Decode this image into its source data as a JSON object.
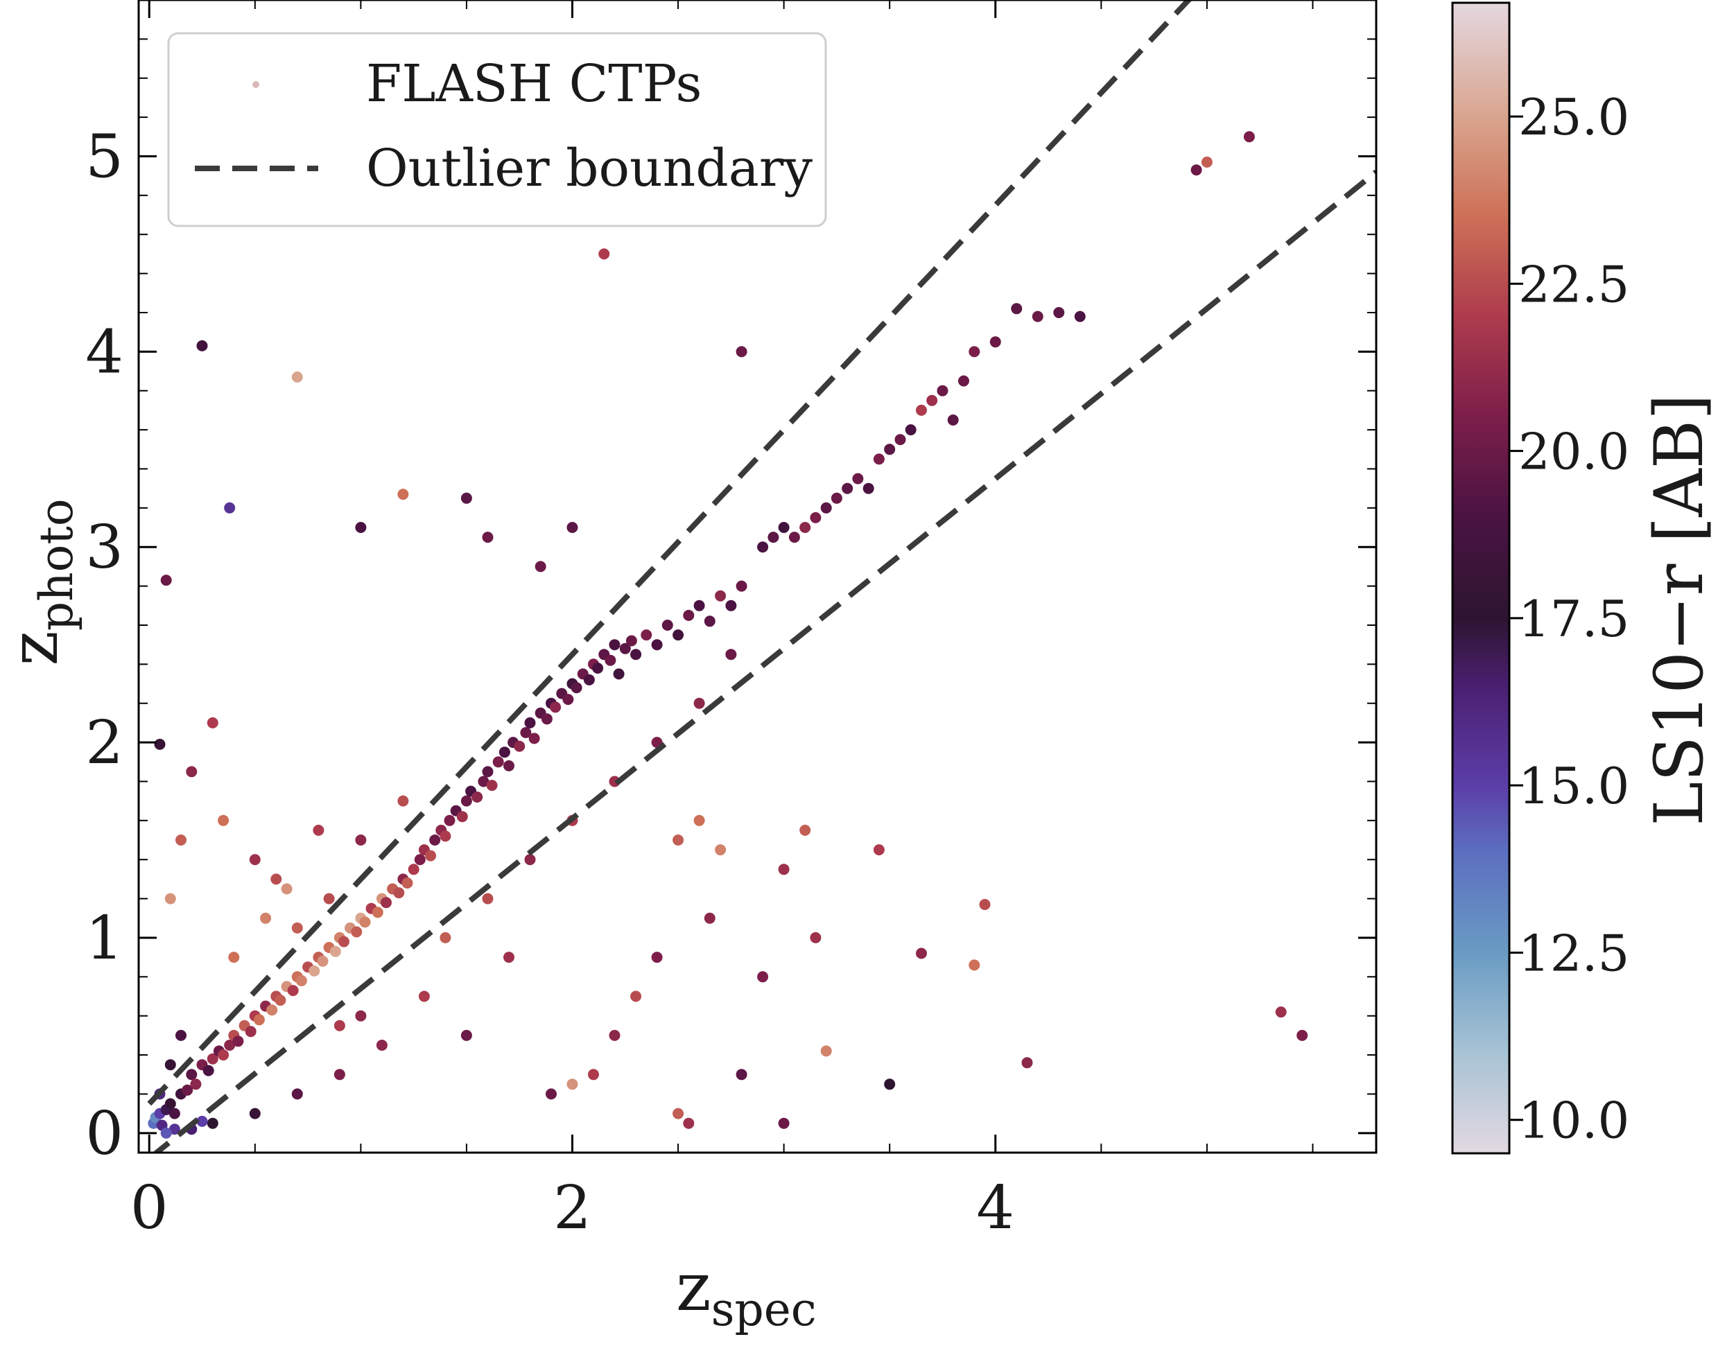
{
  "chart_data": {
    "type": "scatter",
    "xlabel": "z",
    "xlabel_sub": "spec",
    "ylabel": "z",
    "ylabel_sub": "photo",
    "xlim": [
      -0.05,
      5.8
    ],
    "ylim": [
      -0.1,
      5.8
    ],
    "x_ticks": [
      0,
      2,
      4
    ],
    "x_tick_labels": [
      "0",
      "2",
      "4"
    ],
    "y_ticks": [
      0,
      1,
      2,
      3,
      4,
      5
    ],
    "y_tick_labels": [
      "0",
      "1",
      "2",
      "3",
      "4",
      "5"
    ],
    "grid": false,
    "legend": {
      "position": "top-left",
      "entries": [
        {
          "label": "FLASH CTPs",
          "marker": "point"
        },
        {
          "label": "Outlier boundary",
          "marker": "dashed-line"
        }
      ]
    },
    "colorbar": {
      "label": "LS10−r   [AB]",
      "range": [
        9.5,
        26.7
      ],
      "ticks": [
        10.0,
        12.5,
        15.0,
        17.5,
        20.0,
        22.5,
        25.0
      ],
      "tick_labels": [
        "10.0",
        "12.5",
        "15.0",
        "17.5",
        "20.0",
        "22.5",
        "25.0"
      ],
      "colormap": [
        [
          9.5,
          "#e2d9e2"
        ],
        [
          11.0,
          "#a7c3d4"
        ],
        [
          12.5,
          "#6a9bc3"
        ],
        [
          14.0,
          "#5c6fc0"
        ],
        [
          15.0,
          "#5c3ea8"
        ],
        [
          16.5,
          "#4a1f70"
        ],
        [
          17.5,
          "#2d1530"
        ],
        [
          19.0,
          "#4a1342"
        ],
        [
          20.5,
          "#7c1e4a"
        ],
        [
          22.0,
          "#ad3b4d"
        ],
        [
          23.5,
          "#cd7057"
        ],
        [
          25.0,
          "#d9a58e"
        ],
        [
          26.7,
          "#e5d7e0"
        ]
      ]
    },
    "outlier_boundary": {
      "style": "dashed",
      "color": "#3a3a3a",
      "upper": [
        [
          0.0,
          0.15
        ],
        [
          1.0,
          1.3
        ],
        [
          2.0,
          2.45
        ],
        [
          3.0,
          3.6
        ],
        [
          4.0,
          4.75
        ],
        [
          5.0,
          5.9
        ]
      ],
      "lower": [
        [
          0.0,
          -0.13
        ],
        [
          1.0,
          0.74
        ],
        [
          2.0,
          1.61
        ],
        [
          3.0,
          2.48
        ],
        [
          4.0,
          3.35
        ],
        [
          5.0,
          4.22
        ],
        [
          5.8,
          4.92
        ]
      ]
    },
    "series": [
      {
        "name": "FLASH CTPs",
        "points": [
          [
            0.02,
            0.05,
            14.0
          ],
          [
            0.03,
            0.08,
            13.0
          ],
          [
            0.05,
            0.1,
            15.0
          ],
          [
            0.06,
            0.04,
            16.0
          ],
          [
            0.08,
            0.12,
            17.0
          ],
          [
            0.1,
            0.15,
            18.0
          ],
          [
            0.12,
            0.1,
            19.0
          ],
          [
            0.15,
            0.2,
            18.5
          ],
          [
            0.18,
            0.22,
            20.0
          ],
          [
            0.2,
            0.3,
            19.5
          ],
          [
            0.22,
            0.25,
            21.0
          ],
          [
            0.25,
            0.35,
            20.5
          ],
          [
            0.28,
            0.32,
            19.0
          ],
          [
            0.3,
            0.38,
            21.5
          ],
          [
            0.33,
            0.42,
            20.0
          ],
          [
            0.35,
            0.4,
            22.0
          ],
          [
            0.38,
            0.45,
            21.0
          ],
          [
            0.4,
            0.5,
            22.5
          ],
          [
            0.42,
            0.47,
            20.5
          ],
          [
            0.45,
            0.55,
            23.0
          ],
          [
            0.48,
            0.52,
            21.5
          ],
          [
            0.5,
            0.6,
            22.0
          ],
          [
            0.52,
            0.58,
            23.5
          ],
          [
            0.55,
            0.65,
            21.0
          ],
          [
            0.58,
            0.63,
            24.0
          ],
          [
            0.6,
            0.7,
            22.5
          ],
          [
            0.62,
            0.68,
            23.0
          ],
          [
            0.65,
            0.75,
            24.5
          ],
          [
            0.68,
            0.73,
            22.0
          ],
          [
            0.7,
            0.8,
            23.5
          ],
          [
            0.72,
            0.78,
            24.0
          ],
          [
            0.75,
            0.85,
            22.5
          ],
          [
            0.78,
            0.83,
            25.0
          ],
          [
            0.8,
            0.9,
            23.0
          ],
          [
            0.82,
            0.88,
            24.5
          ],
          [
            0.85,
            0.95,
            23.5
          ],
          [
            0.88,
            0.93,
            25.0
          ],
          [
            0.9,
            1.0,
            24.0
          ],
          [
            0.92,
            0.98,
            22.5
          ],
          [
            0.95,
            1.05,
            24.5
          ],
          [
            0.98,
            1.03,
            23.0
          ],
          [
            1.0,
            1.1,
            25.0
          ],
          [
            1.02,
            1.08,
            24.0
          ],
          [
            1.05,
            1.15,
            22.0
          ],
          [
            1.08,
            1.13,
            23.5
          ],
          [
            1.1,
            1.2,
            24.5
          ],
          [
            1.12,
            1.18,
            21.5
          ],
          [
            1.15,
            1.25,
            23.0
          ],
          [
            1.18,
            1.23,
            22.5
          ],
          [
            1.2,
            1.3,
            21.0
          ],
          [
            1.22,
            1.28,
            23.0
          ],
          [
            1.25,
            1.35,
            22.0
          ],
          [
            1.28,
            1.4,
            20.5
          ],
          [
            1.3,
            1.45,
            21.5
          ],
          [
            1.33,
            1.42,
            22.5
          ],
          [
            1.35,
            1.5,
            20.0
          ],
          [
            1.38,
            1.55,
            21.0
          ],
          [
            1.4,
            1.52,
            22.0
          ],
          [
            1.42,
            1.6,
            20.5
          ],
          [
            1.45,
            1.65,
            19.5
          ],
          [
            1.48,
            1.62,
            21.5
          ],
          [
            1.5,
            1.7,
            20.0
          ],
          [
            1.52,
            1.75,
            19.0
          ],
          [
            1.55,
            1.72,
            21.0
          ],
          [
            1.58,
            1.8,
            20.0
          ],
          [
            1.6,
            1.85,
            19.5
          ],
          [
            1.62,
            1.78,
            21.5
          ],
          [
            1.65,
            1.9,
            20.5
          ],
          [
            1.68,
            1.95,
            19.0
          ],
          [
            1.7,
            1.88,
            20.0
          ],
          [
            1.72,
            2.0,
            19.5
          ],
          [
            1.75,
            1.98,
            21.0
          ],
          [
            1.78,
            2.05,
            20.0
          ],
          [
            1.8,
            2.1,
            19.0
          ],
          [
            1.82,
            2.02,
            20.5
          ],
          [
            1.85,
            2.15,
            19.5
          ],
          [
            1.88,
            2.12,
            20.0
          ],
          [
            1.9,
            2.2,
            19.0
          ],
          [
            1.92,
            2.18,
            21.0
          ],
          [
            1.95,
            2.25,
            19.5
          ],
          [
            1.98,
            2.22,
            20.0
          ],
          [
            2.0,
            2.3,
            18.5
          ],
          [
            2.02,
            2.28,
            19.5
          ],
          [
            2.05,
            2.35,
            20.0
          ],
          [
            2.08,
            2.32,
            19.0
          ],
          [
            2.1,
            2.4,
            20.5
          ],
          [
            2.12,
            2.38,
            19.0
          ],
          [
            2.15,
            2.45,
            19.5
          ],
          [
            2.18,
            2.42,
            20.0
          ],
          [
            2.2,
            2.5,
            19.0
          ],
          [
            2.22,
            2.35,
            18.5
          ],
          [
            2.25,
            2.48,
            19.5
          ],
          [
            2.28,
            2.52,
            20.0
          ],
          [
            2.3,
            2.45,
            19.0
          ],
          [
            2.35,
            2.55,
            20.5
          ],
          [
            2.4,
            2.5,
            19.0
          ],
          [
            2.45,
            2.6,
            19.5
          ],
          [
            2.5,
            2.55,
            18.5
          ],
          [
            2.55,
            2.65,
            20.0
          ],
          [
            2.6,
            2.7,
            19.0
          ],
          [
            2.65,
            2.62,
            19.5
          ],
          [
            2.7,
            2.75,
            21.0
          ],
          [
            2.75,
            2.7,
            19.0
          ],
          [
            2.8,
            2.8,
            20.0
          ],
          [
            2.9,
            3.0,
            19.0
          ],
          [
            2.95,
            3.05,
            19.5
          ],
          [
            3.0,
            3.1,
            18.5
          ],
          [
            3.05,
            3.05,
            20.0
          ],
          [
            3.1,
            3.1,
            21.0
          ],
          [
            3.15,
            3.15,
            20.5
          ],
          [
            3.2,
            3.2,
            19.5
          ],
          [
            3.25,
            3.25,
            20.0
          ],
          [
            3.3,
            3.3,
            19.5
          ],
          [
            3.35,
            3.35,
            20.0
          ],
          [
            3.4,
            3.3,
            19.0
          ],
          [
            3.45,
            3.45,
            20.5
          ],
          [
            3.5,
            3.5,
            19.5
          ],
          [
            3.55,
            3.55,
            20.0
          ],
          [
            3.6,
            3.6,
            19.0
          ],
          [
            3.65,
            3.7,
            22.0
          ],
          [
            3.7,
            3.75,
            21.5
          ],
          [
            3.75,
            3.8,
            20.0
          ],
          [
            3.8,
            3.65,
            19.5
          ],
          [
            3.85,
            3.85,
            20.0
          ],
          [
            3.9,
            4.0,
            20.5
          ],
          [
            4.0,
            4.05,
            20.0
          ],
          [
            4.1,
            4.22,
            19.5
          ],
          [
            4.2,
            4.18,
            20.0
          ],
          [
            4.3,
            4.2,
            19.5
          ],
          [
            4.4,
            4.18,
            19.0
          ],
          [
            4.95,
            4.93,
            20.0
          ],
          [
            5.0,
            4.97,
            23.0
          ],
          [
            5.2,
            5.1,
            20.5
          ],
          [
            0.05,
            1.99,
            18.0
          ],
          [
            0.08,
            2.83,
            20.0
          ],
          [
            0.25,
            4.03,
            18.5
          ],
          [
            0.38,
            3.2,
            15.5
          ],
          [
            0.7,
            3.87,
            25.0
          ],
          [
            1.2,
            3.27,
            23.5
          ],
          [
            1.5,
            3.25,
            19.5
          ],
          [
            2.15,
            4.5,
            22.0
          ],
          [
            2.8,
            4.0,
            20.0
          ],
          [
            1.0,
            3.1,
            19.0
          ],
          [
            1.6,
            3.05,
            20.0
          ],
          [
            2.0,
            3.1,
            19.5
          ],
          [
            1.85,
            2.9,
            20.0
          ],
          [
            0.3,
            2.1,
            22.0
          ],
          [
            0.2,
            1.85,
            21.0
          ],
          [
            0.1,
            1.2,
            24.5
          ],
          [
            0.15,
            1.5,
            23.0
          ],
          [
            0.35,
            1.6,
            23.5
          ],
          [
            0.5,
            1.4,
            21.5
          ],
          [
            0.6,
            1.3,
            22.5
          ],
          [
            0.8,
            1.55,
            22.0
          ],
          [
            1.0,
            1.5,
            21.0
          ],
          [
            1.2,
            1.7,
            22.5
          ],
          [
            2.5,
            1.5,
            23.0
          ],
          [
            2.6,
            1.6,
            23.5
          ],
          [
            2.7,
            1.45,
            24.0
          ],
          [
            3.0,
            1.35,
            21.5
          ],
          [
            3.1,
            1.55,
            23.0
          ],
          [
            3.45,
            1.45,
            22.0
          ],
          [
            3.95,
            1.17,
            22.5
          ],
          [
            3.9,
            0.86,
            23.5
          ],
          [
            3.65,
            0.92,
            21.0
          ],
          [
            3.2,
            0.42,
            24.0
          ],
          [
            3.5,
            0.25,
            17.5
          ],
          [
            4.15,
            0.36,
            21.0
          ],
          [
            5.35,
            0.62,
            21.5
          ],
          [
            5.45,
            0.5,
            20.5
          ],
          [
            2.0,
            0.25,
            24.5
          ],
          [
            2.1,
            0.3,
            22.0
          ],
          [
            2.5,
            0.1,
            23.0
          ],
          [
            2.55,
            0.05,
            21.5
          ],
          [
            3.0,
            0.05,
            20.0
          ],
          [
            2.8,
            0.3,
            19.5
          ],
          [
            2.2,
            0.5,
            21.0
          ],
          [
            2.4,
            0.9,
            20.5
          ],
          [
            1.7,
            0.9,
            21.5
          ],
          [
            1.5,
            0.5,
            20.0
          ],
          [
            1.3,
            0.7,
            22.0
          ],
          [
            1.1,
            0.45,
            21.0
          ],
          [
            0.9,
            0.3,
            20.5
          ],
          [
            0.7,
            0.2,
            19.5
          ],
          [
            0.5,
            0.1,
            18.0
          ],
          [
            0.3,
            0.05,
            17.5
          ],
          [
            0.2,
            0.02,
            16.5
          ],
          [
            0.25,
            0.06,
            15.0
          ],
          [
            1.9,
            0.2,
            20.0
          ],
          [
            2.3,
            0.7,
            22.5
          ],
          [
            2.65,
            1.1,
            21.0
          ],
          [
            2.9,
            0.8,
            20.5
          ],
          [
            3.15,
            1.0,
            21.5
          ],
          [
            0.4,
            0.9,
            23.5
          ],
          [
            0.55,
            1.1,
            24.0
          ],
          [
            0.7,
            1.05,
            23.0
          ],
          [
            0.65,
            1.25,
            24.5
          ],
          [
            0.85,
            1.2,
            22.5
          ],
          [
            1.0,
            0.6,
            21.0
          ],
          [
            0.9,
            0.55,
            22.0
          ],
          [
            1.4,
            1.0,
            23.0
          ],
          [
            1.6,
            1.2,
            22.5
          ],
          [
            1.8,
            1.4,
            21.0
          ],
          [
            2.0,
            1.6,
            22.0
          ],
          [
            2.2,
            1.8,
            21.5
          ],
          [
            2.4,
            2.0,
            20.5
          ],
          [
            2.6,
            2.2,
            21.0
          ],
          [
            2.75,
            2.45,
            20.0
          ],
          [
            0.15,
            0.5,
            19.0
          ],
          [
            0.1,
            0.35,
            18.0
          ],
          [
            0.05,
            0.2,
            16.0
          ],
          [
            0.12,
            0.02,
            15.5
          ],
          [
            0.08,
            0.0,
            14.5
          ]
        ]
      }
    ]
  }
}
